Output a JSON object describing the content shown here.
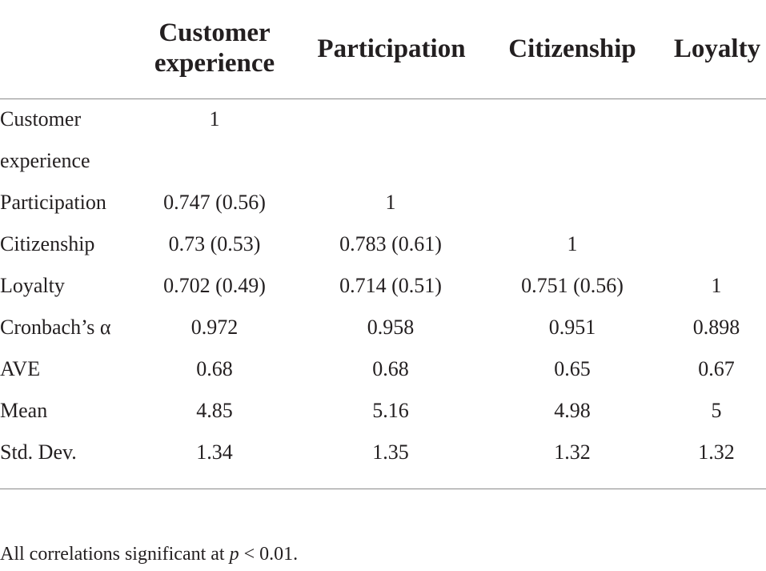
{
  "table": {
    "headers": [
      {
        "line1": "Customer",
        "line2": "experience"
      },
      {
        "line1": "Participation"
      },
      {
        "line1": "Citizenship"
      },
      {
        "line1": "Loyalty"
      }
    ],
    "rows": [
      {
        "label": "Customer",
        "label_cont": "experience",
        "cells": [
          "1",
          "",
          "",
          ""
        ]
      },
      {
        "label": "Participation",
        "cells": [
          "0.747 (0.56)",
          "1",
          "",
          ""
        ]
      },
      {
        "label": "Citizenship",
        "cells": [
          "0.73 (0.53)",
          "0.783 (0.61)",
          "1",
          ""
        ]
      },
      {
        "label": "Loyalty",
        "cells": [
          "0.702 (0.49)",
          "0.714 (0.51)",
          "0.751 (0.56)",
          "1"
        ]
      },
      {
        "label": "Cronbach’s α",
        "cells": [
          "0.972",
          "0.958",
          "0.951",
          "0.898"
        ]
      },
      {
        "label": "AVE",
        "cells": [
          "0.68",
          "0.68",
          "0.65",
          "0.67"
        ]
      },
      {
        "label": "Mean",
        "cells": [
          "4.85",
          "5.16",
          "4.98",
          "5"
        ]
      },
      {
        "label": "Std. Dev.",
        "cells": [
          "1.34",
          "1.35",
          "1.32",
          "1.32"
        ]
      }
    ]
  },
  "footnote": {
    "prefix": "All correlations significant at ",
    "variable": "p",
    "suffix": " < 0.01."
  }
}
